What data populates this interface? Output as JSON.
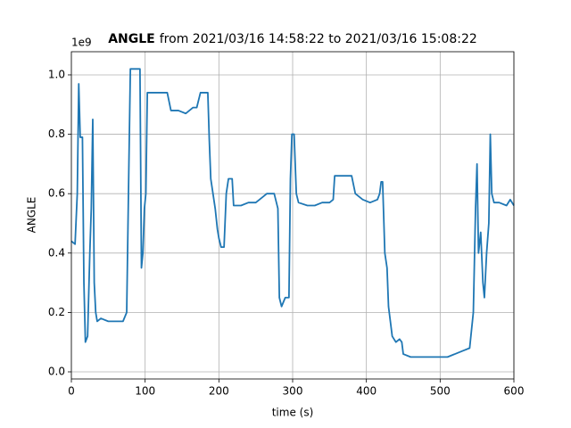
{
  "chart_data": {
    "type": "line",
    "title": "ANGLE",
    "title_rest": "from 2021/03/16 14:58:22 to 2021/03/16 15:08:22",
    "x_label": "time (s)",
    "y_label": "ANGLE",
    "y_offset_label": "1e9",
    "xlim": [
      0,
      600
    ],
    "xticks": [
      0,
      100,
      200,
      300,
      400,
      500,
      600
    ],
    "ylim": [
      -0.024,
      1.078
    ],
    "yticks": [
      {
        "value": 0,
        "label": "0.0"
      },
      0.2,
      0.4,
      0.6,
      0.8,
      {
        "value": 1,
        "label": "1.0"
      }
    ],
    "grid": true,
    "series": [
      {
        "name": "ANGLE",
        "color": "#1f77b4",
        "x": [
          0,
          5,
          8,
          10,
          12,
          15,
          17,
          19,
          22,
          25,
          27,
          29,
          31,
          33,
          35,
          40,
          50,
          60,
          70,
          75,
          78,
          80,
          90,
          93,
          95,
          97,
          99,
          101,
          103,
          110,
          120,
          130,
          135,
          145,
          155,
          165,
          170,
          175,
          182,
          185,
          187,
          189,
          192,
          195,
          198,
          200,
          203,
          207,
          210,
          213,
          218,
          220,
          230,
          240,
          250,
          260,
          265,
          275,
          280,
          282,
          285,
          290,
          295,
          297,
          299,
          302,
          305,
          308,
          320,
          330,
          340,
          350,
          355,
          357,
          370,
          380,
          385,
          395,
          405,
          415,
          418,
          420,
          422,
          425,
          428,
          430,
          435,
          440,
          445,
          448,
          450,
          460,
          470,
          480,
          490,
          500,
          510,
          520,
          530,
          540,
          545,
          548,
          550,
          552,
          555,
          558,
          560,
          563,
          566,
          568,
          570,
          573,
          580,
          590,
          595,
          600
        ],
        "values": [
          0.44,
          0.43,
          0.6,
          0.97,
          0.79,
          0.79,
          0.3,
          0.1,
          0.12,
          0.4,
          0.55,
          0.85,
          0.3,
          0.2,
          0.17,
          0.18,
          0.17,
          0.17,
          0.17,
          0.2,
          0.7,
          1.02,
          1.02,
          1.02,
          0.35,
          0.4,
          0.55,
          0.6,
          0.94,
          0.94,
          0.94,
          0.94,
          0.88,
          0.88,
          0.87,
          0.89,
          0.89,
          0.94,
          0.94,
          0.94,
          0.78,
          0.65,
          0.6,
          0.55,
          0.48,
          0.45,
          0.42,
          0.42,
          0.6,
          0.65,
          0.65,
          0.56,
          0.56,
          0.57,
          0.57,
          0.59,
          0.6,
          0.6,
          0.55,
          0.25,
          0.22,
          0.25,
          0.25,
          0.65,
          0.8,
          0.8,
          0.6,
          0.57,
          0.56,
          0.56,
          0.57,
          0.57,
          0.58,
          0.66,
          0.66,
          0.66,
          0.6,
          0.58,
          0.57,
          0.58,
          0.6,
          0.64,
          0.64,
          0.4,
          0.35,
          0.22,
          0.12,
          0.1,
          0.11,
          0.1,
          0.06,
          0.05,
          0.05,
          0.05,
          0.05,
          0.05,
          0.05,
          0.06,
          0.07,
          0.08,
          0.2,
          0.55,
          0.7,
          0.4,
          0.47,
          0.3,
          0.25,
          0.4,
          0.5,
          0.8,
          0.6,
          0.57,
          0.57,
          0.56,
          0.58,
          0.56
        ]
      }
    ]
  }
}
